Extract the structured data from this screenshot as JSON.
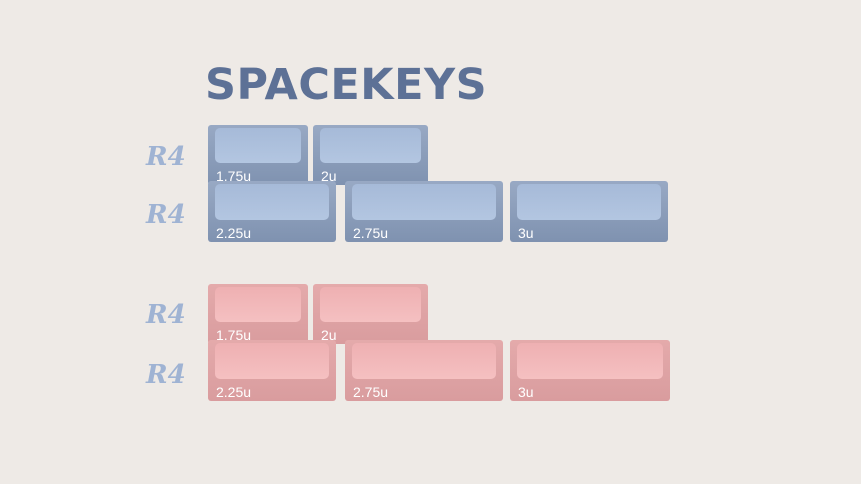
{
  "title": "SPACEKEYS",
  "colors": {
    "title": "#5d7196",
    "blue_keycap": "#a6bad8",
    "pink_keycap": "#eeb0b2",
    "background": "#eeeae6"
  },
  "groups": [
    {
      "color": "blue",
      "rows": [
        {
          "profile": "R4",
          "keys": [
            "1.75u",
            "2u"
          ]
        },
        {
          "profile": "R4",
          "keys": [
            "2.25u",
            "2.75u",
            "3u"
          ]
        }
      ]
    },
    {
      "color": "pink",
      "rows": [
        {
          "profile": "R4",
          "keys": [
            "1.75u",
            "2u"
          ]
        },
        {
          "profile": "R4",
          "keys": [
            "2.25u",
            "2.75u",
            "3u"
          ]
        }
      ]
    }
  ]
}
